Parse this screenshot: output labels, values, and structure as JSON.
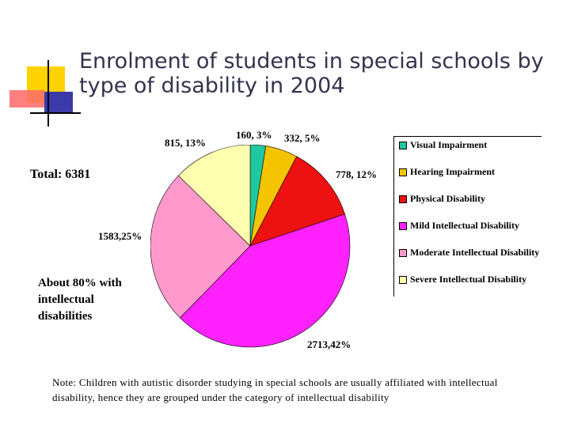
{
  "title": "Enrolment of students in special schools by type of disability in 2004",
  "total_label": "Total: 6381",
  "annotation": "About 80% with intellectual disabilities",
  "note": "Note: Children with autistic disorder studying in special schools are usually affiliated with intellectual disability, hence they are grouped under the category of intellectual disability",
  "chart_data": {
    "type": "pie",
    "categories": [
      "Visual Impairment",
      "Hearing Impairment",
      "Physical Disability",
      "Mild Intellectual Disability",
      "Moderate Intellectual Disability",
      "Severe Intellectual Disability"
    ],
    "values": [
      160,
      332,
      778,
      2713,
      1583,
      815
    ],
    "percents": [
      3,
      5,
      12,
      42,
      25,
      13
    ],
    "data_labels": [
      "160, 3%",
      "332, 5%",
      "778, 12%",
      "2713,42%",
      "1583,25%",
      "815, 13%"
    ],
    "colors": [
      "#20c8a0",
      "#f5c400",
      "#ee1111",
      "#ff22ff",
      "#ff99cc",
      "#ffffb0"
    ],
    "legend": "right"
  }
}
